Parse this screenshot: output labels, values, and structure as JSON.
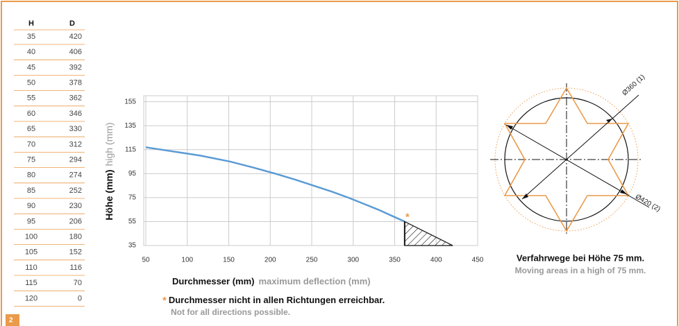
{
  "table": {
    "header": [
      "H",
      "D"
    ],
    "rows": [
      [
        35,
        420
      ],
      [
        40,
        406
      ],
      [
        45,
        392
      ],
      [
        50,
        378
      ],
      [
        55,
        362
      ],
      [
        60,
        346
      ],
      [
        65,
        330
      ],
      [
        70,
        312
      ],
      [
        75,
        294
      ],
      [
        80,
        274
      ],
      [
        85,
        252
      ],
      [
        90,
        230
      ],
      [
        95,
        206
      ],
      [
        100,
        180
      ],
      [
        105,
        152
      ],
      [
        110,
        116
      ],
      [
        115,
        70
      ],
      [
        120,
        0
      ]
    ]
  },
  "badge": "2",
  "chart_data": {
    "type": "line",
    "y_label": "Höhe (mm)",
    "y_label_en": "high (mm)",
    "x_label": "Durchmesser (mm)",
    "x_label_en": "maximum deflection (mm)",
    "note_marker": "*",
    "note": "Durchmesser nicht in allen Richtungen erreichbar.",
    "note_en": "Not for all directions possible.",
    "xlim": [
      50,
      450
    ],
    "xticks": [
      50,
      100,
      150,
      200,
      250,
      300,
      350,
      400,
      450
    ],
    "ylim": [
      35,
      160
    ],
    "yticks": [
      35,
      55,
      75,
      95,
      115,
      135,
      155
    ],
    "grid": true,
    "series": [
      {
        "name": null,
        "color": "#5b9bd5",
        "x": [
          50,
          116,
          152,
          180,
          206,
          230,
          252,
          274,
          294,
          312,
          330,
          346,
          362
        ],
        "values": [
          117,
          110,
          105,
          100,
          95,
          90,
          85,
          80,
          75,
          70,
          65,
          60,
          55
        ]
      }
    ],
    "hatch": {
      "x": [
        362,
        420
      ],
      "values": [
        55,
        35
      ]
    }
  },
  "diagram": {
    "label_inner": "Ø360 (1)",
    "label_outer": "Ø420 (2)",
    "caption": "Verfahrwege bei Höhe 75 mm.",
    "caption_en": "Moving areas in a high of 75 mm."
  }
}
